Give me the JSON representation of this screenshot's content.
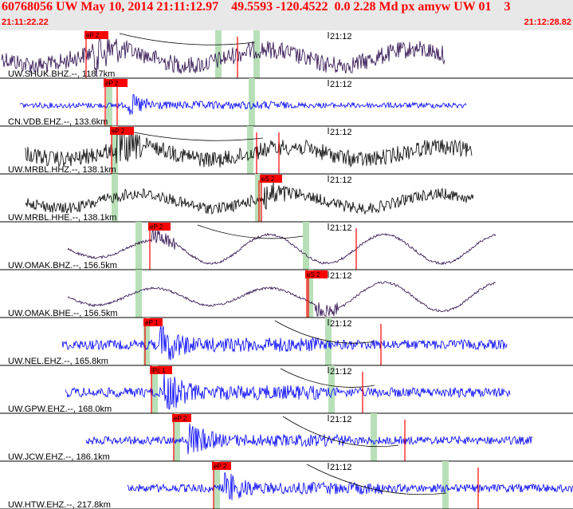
{
  "header": {
    "title": "60768056 UW May 10, 2014 21:11:12.97    49.5593 -120.4522  0.0 2.28 Md px amyw UW 01    3",
    "start_time": "21:11:22.22",
    "end_time": "21:12:28.82"
  },
  "colors": {
    "header_bg": "#e8e8e8",
    "title": "#ff0000",
    "dark_trace": "#2a0a4a",
    "black_trace": "#000000",
    "blue_trace": "#0000ff",
    "pick_box": "#ff0000",
    "pick_line": "#ff0000",
    "green_band": "#b8e0b8",
    "separator": "#000000"
  },
  "chart_data": {
    "type": "line",
    "title": "60768056 UW May 10, 2014 21:11:12.97    49.5593 -120.4522  0.0 2.28 Md px amyw UW 01    3",
    "x_range": [
      "21:11:22.22",
      "21:12:28.82"
    ],
    "minute_marker": "21:12",
    "traces": [
      {
        "label": "UW.SHUK.BHZ.--, 118.7km",
        "pick": "eP 2",
        "color": "dark"
      },
      {
        "label": "CN.VDB.EHZ.--, 133.6km",
        "pick": "eP 2",
        "color": "blue"
      },
      {
        "label": "UW.MRBL.HHZ.--, 138.1km",
        "pick": "eP 2",
        "color": "black"
      },
      {
        "label": "UW.MRBL.HHE.--, 138.1km",
        "pick": "eS 2",
        "color": "black"
      },
      {
        "label": "UW.OMAK.BHZ.--, 156.5km",
        "pick": "eP 2",
        "color": "dark"
      },
      {
        "label": "UW.OMAK.BHE.--, 156.5km",
        "pick": "eS 2",
        "color": "dark"
      },
      {
        "label": "UW.NEL.EHZ.--, 165.8km",
        "pick": "eP 1",
        "color": "blue"
      },
      {
        "label": "UW.GPW.EHZ.--, 168.0km",
        "pick": "iPc 1",
        "color": "blue"
      },
      {
        "label": "UW.JCW.EHZ.--, 186.1km",
        "pick": "eP 2",
        "color": "blue"
      },
      {
        "label": "UW.HTW.EHZ.--, 217.8km",
        "pick": "eP 2",
        "color": "blue"
      }
    ]
  }
}
